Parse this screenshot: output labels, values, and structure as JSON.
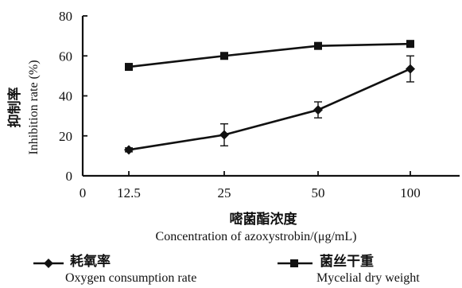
{
  "chart_data": {
    "type": "line",
    "categories": [
      "12.5",
      "25",
      "50",
      "100"
    ],
    "x_origin_label": "0",
    "xlabel_cn": "嘧菌酯浓度",
    "xlabel": "Concentration of azoxystrobin/(μg/mL)",
    "ylabel_cn": "抑制率",
    "ylabel": "Inhibition rate (%)",
    "ylim": [
      0,
      80
    ],
    "yticks": [
      0,
      20,
      40,
      60,
      80
    ],
    "ytick_labels": [
      "0",
      "20",
      "40",
      "60",
      "80"
    ],
    "grid": false,
    "legend_position": "bottom",
    "series": [
      {
        "name_cn": "耗氧率",
        "name": "Oxygen consumption rate",
        "marker": "diamond",
        "values": [
          13,
          20.5,
          33,
          53.5
        ],
        "errors": [
          1,
          5.5,
          4,
          6.5
        ]
      },
      {
        "name_cn": "菌丝干重",
        "name": "Mycelial dry weight",
        "marker": "square",
        "values": [
          54.5,
          60,
          65,
          66
        ],
        "errors": [
          0.5,
          0.5,
          1.5,
          1
        ]
      }
    ]
  }
}
